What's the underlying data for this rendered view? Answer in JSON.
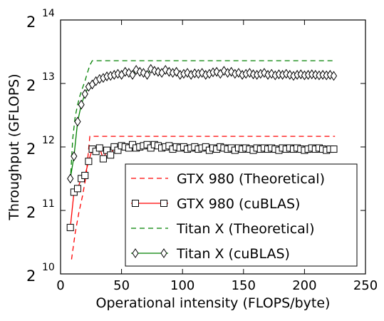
{
  "chart_data": {
    "type": "line",
    "xlabel": "Operational intensity (FLOPS/byte)",
    "ylabel": "Throughput (GFLOPS)",
    "xlim": [
      0,
      250
    ],
    "ylim_log2": [
      10,
      14
    ],
    "y_scale": "log2",
    "x_ticks": [
      0,
      50,
      100,
      150,
      200,
      250
    ],
    "y_tick_base": "2",
    "y_tick_exponents": [
      "10",
      "11",
      "12",
      "13",
      "14"
    ],
    "legend_placement": "lower-right",
    "series": [
      {
        "name": "GTX 980 (Theoretical)",
        "color": "#ff0000",
        "style": "dashed",
        "marker": "none",
        "x": [
          9,
          12,
          15,
          18,
          21,
          24,
          225
        ],
        "y": [
          1.2,
          1.6,
          2.0,
          2.4,
          3.0,
          4.6,
          4.6
        ]
      },
      {
        "name": "GTX 980 (cuBLAS)",
        "color": "#ff0000",
        "style": "solid",
        "marker": "square",
        "x": [
          8,
          11,
          14,
          17,
          20,
          23,
          26,
          29,
          32,
          35,
          38,
          41,
          44,
          47,
          50,
          53,
          56,
          59,
          62,
          65,
          68,
          71,
          74,
          77,
          80,
          83,
          86,
          89,
          92,
          95,
          98,
          101,
          104,
          107,
          110,
          113,
          116,
          119,
          122,
          125,
          128,
          131,
          134,
          137,
          140,
          143,
          146,
          149,
          152,
          155,
          158,
          161,
          164,
          167,
          170,
          173,
          176,
          179,
          182,
          185,
          188,
          191,
          194,
          197,
          200,
          203,
          206,
          209,
          212,
          215,
          218,
          221,
          224
        ],
        "y": [
          1.7,
          2.5,
          2.6,
          2.9,
          3.0,
          3.5,
          4.0,
          3.9,
          4.05,
          3.6,
          3.95,
          3.75,
          4.1,
          3.95,
          4.15,
          4.1,
          4.05,
          4.2,
          4.05,
          4.1,
          4.15,
          4.2,
          4.05,
          4.2,
          4.15,
          4.05,
          4.1,
          4.15,
          4.0,
          4.1,
          4.05,
          4.1,
          4.0,
          4.05,
          4.1,
          4.0,
          4.05,
          4.1,
          3.95,
          4.05,
          4.0,
          4.1,
          4.05,
          4.0,
          4.05,
          3.95,
          4.05,
          4.0,
          4.05,
          4.0,
          3.95,
          4.05,
          4.0,
          4.05,
          4.0,
          4.05,
          4.0,
          3.95,
          4.05,
          4.0,
          4.05,
          4.0,
          4.05,
          4.0,
          3.95,
          4.0,
          4.05,
          4.0,
          4.05,
          4.0,
          3.95,
          4.0,
          4.0
        ]
      },
      {
        "name": "Titan X (Theoretical)",
        "color": "#008000",
        "style": "dashed",
        "marker": "none",
        "x": [
          8,
          10,
          12,
          14,
          16,
          18,
          20,
          22,
          24,
          26,
          225
        ],
        "y": [
          2.8,
          4.5,
          5.7,
          6.5,
          7.2,
          7.8,
          8.4,
          9.2,
          10.0,
          10.5,
          10.5
        ]
      },
      {
        "name": "Titan X (cuBLAS)",
        "color": "#008000",
        "style": "solid",
        "marker": "diamond",
        "x": [
          8,
          11,
          14,
          17,
          20,
          23,
          26,
          29,
          32,
          35,
          38,
          41,
          44,
          47,
          50,
          53,
          56,
          59,
          62,
          65,
          68,
          71,
          74,
          77,
          80,
          83,
          86,
          89,
          92,
          95,
          98,
          101,
          104,
          107,
          110,
          113,
          116,
          119,
          122,
          125,
          128,
          131,
          134,
          137,
          140,
          143,
          146,
          149,
          152,
          155,
          158,
          161,
          164,
          167,
          170,
          173,
          176,
          179,
          182,
          185,
          188,
          191,
          194,
          197,
          200,
          203,
          206,
          209,
          212,
          215,
          218,
          221,
          224
        ],
        "y": [
          2.9,
          3.7,
          5.4,
          6.5,
          7.3,
          7.9,
          8.1,
          8.4,
          8.6,
          8.7,
          8.85,
          8.9,
          9.0,
          9.1,
          9.0,
          9.3,
          9.2,
          9.0,
          9.5,
          9.3,
          9.2,
          9.0,
          9.6,
          9.4,
          9.3,
          9.2,
          9.5,
          9.3,
          9.2,
          9.3,
          9.0,
          9.1,
          9.2,
          9.0,
          9.15,
          9.1,
          9.2,
          9.0,
          9.1,
          9.25,
          9.3,
          9.1,
          9.4,
          9.2,
          9.3,
          9.1,
          9.2,
          9.0,
          9.1,
          9.2,
          9.05,
          9.0,
          9.1,
          9.2,
          9.0,
          9.1,
          8.95,
          9.05,
          9.0,
          9.1,
          9.0,
          8.9,
          9.0,
          9.05,
          8.95,
          9.0,
          9.05,
          9.0,
          8.95,
          9.0,
          8.95,
          9.0,
          8.9
        ]
      }
    ]
  }
}
